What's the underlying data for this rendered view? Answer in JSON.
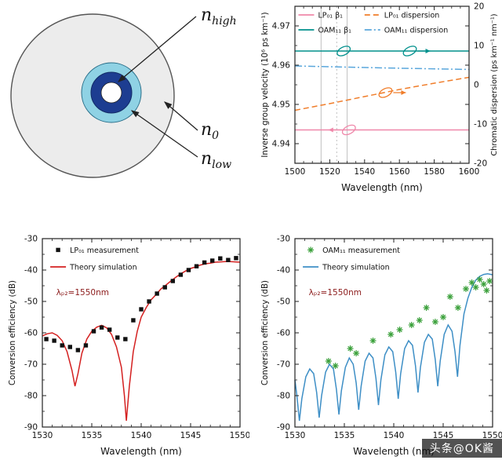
{
  "watermark": {
    "text": "头条@OK酱"
  },
  "diagram": {
    "labels": {
      "n_high": {
        "base": "n",
        "sub": "high"
      },
      "n_0": {
        "base": "n",
        "sub": "0"
      },
      "n_low": {
        "base": "n",
        "sub": "low"
      }
    },
    "colors": {
      "cladding": "#ececec",
      "ring_low": "#8fd2e4",
      "ring_high": "#1d3d91",
      "core": "#ffffff"
    }
  },
  "chart_data": [
    {
      "id": "chart-dispersion",
      "type": "line",
      "x": {
        "label": "Wavelength (nm)",
        "range": [
          1500,
          1600
        ],
        "ticks": [
          1500,
          1520,
          1540,
          1560,
          1580,
          1600
        ],
        "minor_step": 5
      },
      "left": {
        "label": "Inverse group velocity (10⁶ ps km⁻¹)",
        "range": [
          4.935,
          4.975
        ],
        "ticks": [
          4.94,
          4.95,
          4.96,
          4.97
        ],
        "minor_step": 0.005
      },
      "right": {
        "label": "Chromatic dispersion (ps km⁻¹ nm⁻¹)",
        "range": [
          -20,
          20
        ],
        "ticks": [
          -20,
          -10,
          0,
          10,
          20
        ]
      },
      "ref_x": [
        {
          "x": 1515,
          "style": "solid"
        },
        {
          "x": 1524,
          "style": "dot"
        },
        {
          "x": 1530,
          "style": "solid"
        }
      ],
      "series": [
        {
          "name": "LP01 beta1",
          "color": "#ef88aa",
          "line": "solid",
          "axis": "left",
          "points": [
            [
              1500,
              4.9435
            ],
            [
              1600,
              4.9435
            ]
          ]
        },
        {
          "name": "OAM11 beta1",
          "color": "#00908c",
          "line": "solid",
          "axis": "left",
          "points": [
            [
              1500,
              4.9636
            ],
            [
              1600,
              4.9636
            ]
          ]
        },
        {
          "name": "LP01 dispersion",
          "color": "#f07d2a",
          "line": "dash",
          "axis": "right",
          "points": [
            [
              1500,
              -6.5
            ],
            [
              1520,
              -4.8
            ],
            [
              1540,
              -3.0
            ],
            [
              1560,
              -1.2
            ],
            [
              1580,
              0.4
            ],
            [
              1600,
              1.9
            ]
          ]
        },
        {
          "name": "OAM11 dispersion",
          "color": "#5aa7dc",
          "line": "dashdot",
          "axis": "right",
          "points": [
            [
              1500,
              4.8
            ],
            [
              1550,
              4.3
            ],
            [
              1600,
              3.9
            ]
          ]
        }
      ],
      "legend": [
        {
          "label": "LP₀₁ β₁",
          "color": "#ef88aa",
          "line": "solid",
          "nx": 0.02,
          "ny": 0.055
        },
        {
          "label": "OAM₁₁ β₁",
          "color": "#00908c",
          "line": "solid",
          "nx": 0.02,
          "ny": 0.15
        },
        {
          "label": "LP₀₁ dispersion",
          "color": "#f07d2a",
          "line": "dash",
          "nx": 0.4,
          "ny": 0.055
        },
        {
          "label": "OAM₁₁ dispersion",
          "color": "#5aa7dc",
          "line": "dashdot",
          "nx": 0.4,
          "ny": 0.15
        }
      ],
      "annotations": [
        {
          "x": 1531,
          "y": 4.9435,
          "axis": "left",
          "color": "#ef88aa",
          "arrow": "left"
        },
        {
          "x": 1528,
          "y": 4.9636,
          "axis": "left",
          "color": "#00908c",
          "arrow": "none"
        },
        {
          "x": 1566,
          "y": 4.9636,
          "axis": "left",
          "color": "#00908c",
          "arrow": "right"
        },
        {
          "x": 1552,
          "y": -2.0,
          "axis": "right",
          "color": "#f07d2a",
          "arrow": "right"
        }
      ]
    },
    {
      "id": "chart-lp01",
      "type": "line",
      "x": {
        "label": "Wavelength (nm)",
        "range": [
          1530,
          1550
        ],
        "ticks": [
          1530,
          1535,
          1540,
          1545,
          1550
        ],
        "minor_step": 1
      },
      "left": {
        "label": "Conversion efficiency (dB)",
        "range": [
          -90,
          -30
        ],
        "ticks": [
          -90,
          -80,
          -70,
          -60,
          -50,
          -40,
          -30
        ],
        "minor_step": 5
      },
      "series": [
        {
          "name": "Theory simulation",
          "color": "#d42020",
          "line": "solid",
          "points": [
            [
              1530,
              -61
            ],
            [
              1530.5,
              -60.3
            ],
            [
              1531,
              -60
            ],
            [
              1531.5,
              -60.8
            ],
            [
              1532,
              -62.5
            ],
            [
              1532.5,
              -66
            ],
            [
              1533,
              -72
            ],
            [
              1533.3,
              -77
            ],
            [
              1533.6,
              -73
            ],
            [
              1534,
              -66.5
            ],
            [
              1534.5,
              -62
            ],
            [
              1535,
              -59.5
            ],
            [
              1535.5,
              -58.2
            ],
            [
              1536,
              -57.6
            ],
            [
              1536.5,
              -58.4
            ],
            [
              1537,
              -60.5
            ],
            [
              1537.5,
              -64.5
            ],
            [
              1538,
              -71
            ],
            [
              1538.3,
              -80
            ],
            [
              1538.5,
              -88
            ],
            [
              1538.8,
              -77
            ],
            [
              1539.2,
              -66
            ],
            [
              1539.6,
              -59.5
            ],
            [
              1540,
              -55
            ],
            [
              1540.5,
              -52
            ],
            [
              1541,
              -49.5
            ],
            [
              1541.5,
              -47.8
            ],
            [
              1542,
              -46
            ],
            [
              1542.5,
              -44.8
            ],
            [
              1543,
              -43.5
            ],
            [
              1543.5,
              -42.3
            ],
            [
              1544,
              -41.2
            ],
            [
              1544.5,
              -40.3
            ],
            [
              1545,
              -39.5
            ],
            [
              1545.5,
              -39
            ],
            [
              1546,
              -38.4
            ],
            [
              1546.5,
              -38
            ],
            [
              1547,
              -37.8
            ],
            [
              1547.5,
              -37.5
            ],
            [
              1548,
              -37.4
            ],
            [
              1548.5,
              -37.3
            ],
            [
              1549,
              -37.3
            ],
            [
              1549.5,
              -37.4
            ],
            [
              1550,
              -37.5
            ]
          ]
        },
        {
          "name": "LP01 measurement",
          "color": "#111111",
          "line": "none",
          "marker": "square",
          "points": [
            [
              1530.4,
              -62
            ],
            [
              1531.2,
              -62.5
            ],
            [
              1532,
              -64
            ],
            [
              1532.8,
              -64.5
            ],
            [
              1533.6,
              -65.5
            ],
            [
              1534.4,
              -64
            ],
            [
              1535.2,
              -59.5
            ],
            [
              1536,
              -58.3
            ],
            [
              1536.8,
              -59
            ],
            [
              1537.6,
              -61.5
            ],
            [
              1538.4,
              -62
            ],
            [
              1539.2,
              -56
            ],
            [
              1540,
              -52.5
            ],
            [
              1540.8,
              -50
            ],
            [
              1541.6,
              -47.5
            ],
            [
              1542.4,
              -45.5
            ],
            [
              1543.2,
              -43.5
            ],
            [
              1544,
              -41.5
            ],
            [
              1544.8,
              -40
            ],
            [
              1545.6,
              -38.8
            ],
            [
              1546.4,
              -37.6
            ],
            [
              1547.2,
              -37
            ],
            [
              1548,
              -36.3
            ],
            [
              1548.8,
              -36.8
            ],
            [
              1549.6,
              -36.2
            ]
          ]
        }
      ],
      "legend": [
        {
          "label": "LP₀₁ measurement",
          "color": "#111111",
          "marker": "square",
          "nx": 0.04,
          "ny": 0.06
        },
        {
          "label": "Theory simulation",
          "color": "#d42020",
          "line": "solid",
          "nx": 0.04,
          "ny": 0.15
        }
      ],
      "texts": [
        {
          "label": "λₚ₂=1550nm",
          "nx": 0.07,
          "ny": 0.3,
          "color": "#8b1a1a"
        }
      ]
    },
    {
      "id": "chart-oam11",
      "type": "line",
      "x": {
        "label": "Wavelength (nm)",
        "range": [
          1530,
          1550
        ],
        "ticks": [
          1530,
          1535,
          1540,
          1545,
          1550
        ],
        "minor_step": 1
      },
      "left": {
        "label": "Conversion efficiency (dB)",
        "range": [
          -90,
          -30
        ],
        "ticks": [
          -90,
          -80,
          -70,
          -60,
          -50,
          -40,
          -30
        ],
        "minor_step": 5
      },
      "series": [
        {
          "name": "Theory simulation",
          "color": "#3e8fc6",
          "line": "solid",
          "points": [
            [
              1530,
              -75
            ],
            [
              1530.2,
              -80
            ],
            [
              1530.45,
              -88
            ],
            [
              1530.7,
              -81
            ],
            [
              1531.1,
              -74
            ],
            [
              1531.5,
              -71.5
            ],
            [
              1531.9,
              -73
            ],
            [
              1532.2,
              -79
            ],
            [
              1532.45,
              -87
            ],
            [
              1532.7,
              -80
            ],
            [
              1533.1,
              -72.5
            ],
            [
              1533.5,
              -70
            ],
            [
              1533.9,
              -71.5
            ],
            [
              1534.2,
              -78
            ],
            [
              1534.45,
              -86
            ],
            [
              1534.7,
              -78.5
            ],
            [
              1535.1,
              -71
            ],
            [
              1535.5,
              -68
            ],
            [
              1535.9,
              -70
            ],
            [
              1536.2,
              -76
            ],
            [
              1536.45,
              -84.5
            ],
            [
              1536.7,
              -77
            ],
            [
              1537.1,
              -69
            ],
            [
              1537.5,
              -66.5
            ],
            [
              1537.9,
              -68
            ],
            [
              1538.2,
              -74.5
            ],
            [
              1538.45,
              -83
            ],
            [
              1538.7,
              -75
            ],
            [
              1539.1,
              -67
            ],
            [
              1539.5,
              -64.5
            ],
            [
              1539.9,
              -66
            ],
            [
              1540.2,
              -72.5
            ],
            [
              1540.45,
              -81
            ],
            [
              1540.7,
              -73
            ],
            [
              1541.1,
              -65
            ],
            [
              1541.5,
              -62.5
            ],
            [
              1541.9,
              -64
            ],
            [
              1542.2,
              -70.5
            ],
            [
              1542.45,
              -79
            ],
            [
              1542.7,
              -71
            ],
            [
              1543.1,
              -63
            ],
            [
              1543.5,
              -60.5
            ],
            [
              1543.9,
              -62
            ],
            [
              1544.2,
              -68.5
            ],
            [
              1544.45,
              -77
            ],
            [
              1544.7,
              -69
            ],
            [
              1545.1,
              -60.5
            ],
            [
              1545.5,
              -57.5
            ],
            [
              1545.9,
              -59.5
            ],
            [
              1546.2,
              -66
            ],
            [
              1546.45,
              -74
            ],
            [
              1546.7,
              -64
            ],
            [
              1547.1,
              -54
            ],
            [
              1547.5,
              -49
            ],
            [
              1547.9,
              -45.5
            ],
            [
              1548.3,
              -43.2
            ],
            [
              1548.7,
              -42
            ],
            [
              1549.1,
              -41.4
            ],
            [
              1549.5,
              -41.2
            ],
            [
              1550,
              -41.5
            ]
          ]
        },
        {
          "name": "OAM11 measurement",
          "color": "#3aa03a",
          "line": "none",
          "marker": "asterisk",
          "points": [
            [
              1533.4,
              -69
            ],
            [
              1534.1,
              -70.5
            ],
            [
              1535.6,
              -65
            ],
            [
              1536.2,
              -66.5
            ],
            [
              1537.9,
              -62.5
            ],
            [
              1539.7,
              -60.5
            ],
            [
              1540.6,
              -59
            ],
            [
              1541.8,
              -57.5
            ],
            [
              1542.6,
              -56
            ],
            [
              1543.3,
              -52
            ],
            [
              1544.2,
              -56.5
            ],
            [
              1545,
              -55
            ],
            [
              1545.7,
              -48.5
            ],
            [
              1546.5,
              -52
            ],
            [
              1547.3,
              -46
            ],
            [
              1547.9,
              -44
            ],
            [
              1548.3,
              -45.5
            ],
            [
              1548.7,
              -43
            ],
            [
              1549.1,
              -44.5
            ],
            [
              1549.4,
              -46.5
            ],
            [
              1549.7,
              -43.5
            ]
          ]
        }
      ],
      "legend": [
        {
          "label": "OAM₁₁ measurement",
          "color": "#3aa03a",
          "marker": "asterisk",
          "nx": 0.04,
          "ny": 0.06
        },
        {
          "label": "Theory simulation",
          "color": "#3e8fc6",
          "line": "solid",
          "nx": 0.04,
          "ny": 0.15
        }
      ],
      "texts": [
        {
          "label": "λₚ₂=1550nm",
          "nx": 0.07,
          "ny": 0.3,
          "color": "#8b1a1a"
        }
      ]
    }
  ]
}
